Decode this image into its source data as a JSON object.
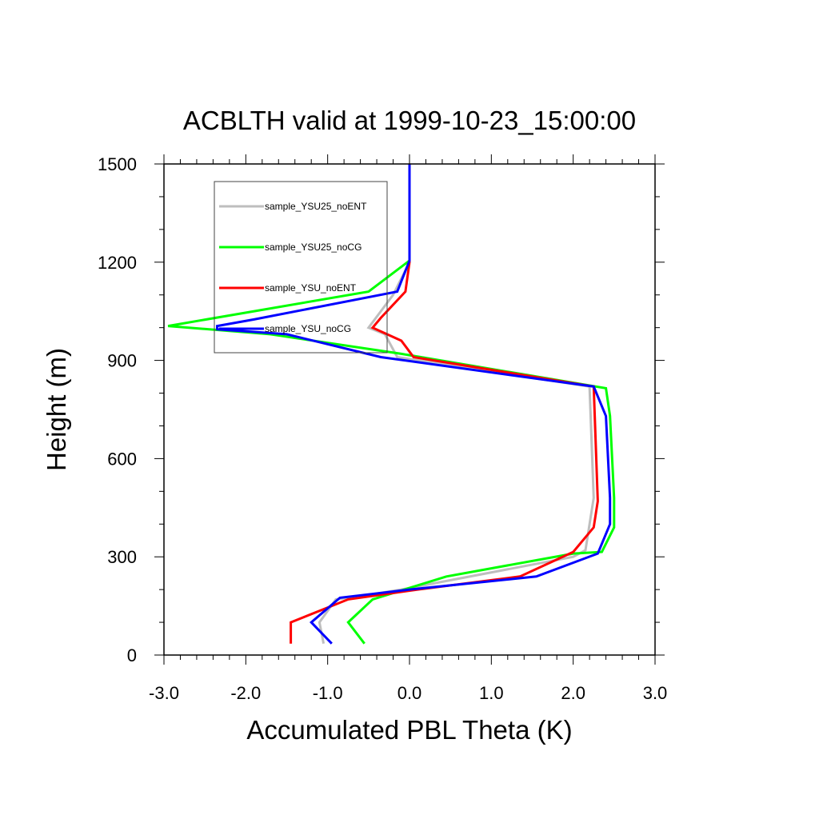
{
  "chart_data": {
    "type": "line",
    "title": "ACBLTH valid at 1999-10-23_15:00:00",
    "xlabel": "Accumulated PBL Theta (K)",
    "ylabel": "Height (m)",
    "xlim": [
      -3.0,
      3.0
    ],
    "ylim": [
      0,
      1500
    ],
    "xticks": [
      -3.0,
      -2.0,
      -1.0,
      0.0,
      1.0,
      2.0,
      3.0
    ],
    "xtick_labels": [
      "-3.0",
      "-2.0",
      "-1.0",
      "0.0",
      "1.0",
      "2.0",
      "3.0"
    ],
    "yticks": [
      0,
      300,
      600,
      900,
      1200,
      1500
    ],
    "ytick_labels": [
      "0",
      "300",
      "600",
      "900",
      "1200",
      "1500"
    ],
    "grid": false,
    "legend_position": "top-left",
    "series": [
      {
        "name": "sample_YSU25_noENT",
        "color": "#bebebe",
        "points": [
          [
            -1.05,
            35
          ],
          [
            -1.1,
            100
          ],
          [
            -0.9,
            170
          ],
          [
            -0.6,
            180
          ],
          [
            -0.1,
            200
          ],
          [
            2.0,
            300
          ],
          [
            2.15,
            320
          ],
          [
            2.25,
            480
          ],
          [
            2.2,
            820
          ],
          [
            -0.15,
            910
          ],
          [
            -0.3,
            980
          ],
          [
            -0.5,
            1000
          ],
          [
            -0.2,
            1100
          ],
          [
            0.0,
            1200
          ],
          [
            0.0,
            1300
          ],
          [
            0.0,
            1500
          ]
        ]
      },
      {
        "name": "sample_YSU25_noCG",
        "color": "#00ff00",
        "points": [
          [
            -0.55,
            35
          ],
          [
            -0.75,
            100
          ],
          [
            -0.45,
            170
          ],
          [
            0.45,
            240
          ],
          [
            2.0,
            310
          ],
          [
            2.35,
            315
          ],
          [
            2.5,
            390
          ],
          [
            2.5,
            480
          ],
          [
            2.45,
            730
          ],
          [
            2.4,
            815
          ],
          [
            -0.1,
            920
          ],
          [
            -1.7,
            980
          ],
          [
            -2.95,
            1005
          ],
          [
            -0.5,
            1110
          ],
          [
            0.0,
            1205
          ],
          [
            0.0,
            1300
          ],
          [
            0.0,
            1500
          ]
        ]
      },
      {
        "name": "sample_YSU_noENT",
        "color": "#ff0000",
        "points": [
          [
            -1.45,
            35
          ],
          [
            -1.45,
            100
          ],
          [
            -0.75,
            170
          ],
          [
            0.1,
            200
          ],
          [
            1.35,
            240
          ],
          [
            2.0,
            315
          ],
          [
            2.25,
            390
          ],
          [
            2.3,
            470
          ],
          [
            2.25,
            820
          ],
          [
            0.05,
            910
          ],
          [
            -0.1,
            960
          ],
          [
            -0.45,
            1000
          ],
          [
            -0.35,
            1030
          ],
          [
            -0.05,
            1110
          ],
          [
            0.0,
            1200
          ],
          [
            0.0,
            1500
          ]
        ]
      },
      {
        "name": "sample_YSU_noCG",
        "color": "#0000ff",
        "points": [
          [
            -0.95,
            35
          ],
          [
            -1.2,
            100
          ],
          [
            -0.85,
            175
          ],
          [
            0.0,
            200
          ],
          [
            1.55,
            240
          ],
          [
            2.3,
            310
          ],
          [
            2.45,
            400
          ],
          [
            2.45,
            480
          ],
          [
            2.4,
            730
          ],
          [
            2.25,
            820
          ],
          [
            -0.35,
            910
          ],
          [
            -1.5,
            980
          ],
          [
            -2.35,
            995
          ],
          [
            -2.35,
            1005
          ],
          [
            -1.9,
            1025
          ],
          [
            -0.15,
            1110
          ],
          [
            0.0,
            1205
          ],
          [
            0.0,
            1500
          ]
        ]
      }
    ]
  }
}
